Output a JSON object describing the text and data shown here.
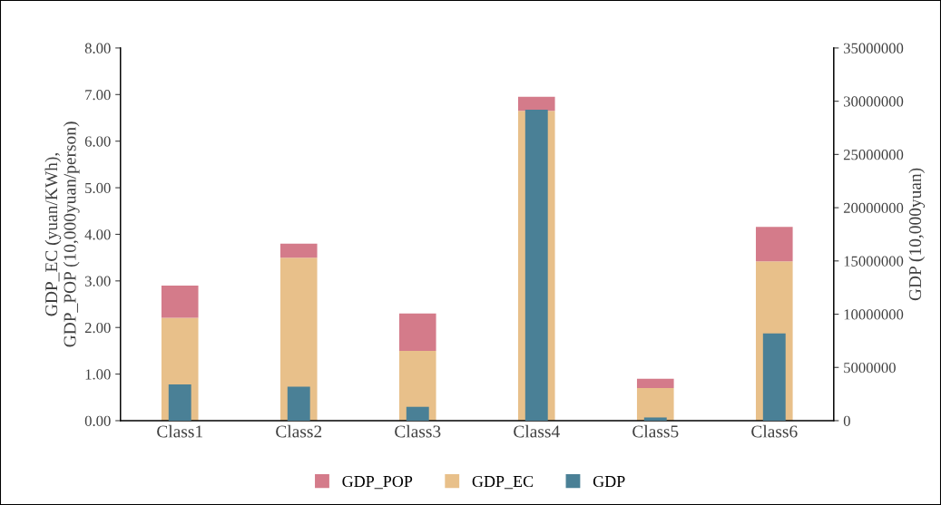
{
  "chart_data": {
    "type": "bar",
    "stacked": true,
    "categories": [
      "Class1",
      "Class2",
      "Class3",
      "Class4",
      "Class5",
      "Class6"
    ],
    "ylabel": "GDP_EC (yuan/KWh),\nGDP_POP (10,000yuan/person)",
    "y2label": "GDP (10,000yuan)",
    "series": [
      {
        "name": "GDP_EC",
        "color": "#e8c08a",
        "values": [
          2.21,
          3.5,
          1.5,
          6.65,
          0.7,
          3.42
        ]
      },
      {
        "name": "GDP_POP",
        "color": "#d47b8a",
        "values": [
          0.69,
          0.3,
          0.8,
          0.3,
          0.2,
          0.74
        ]
      },
      {
        "name": "GDP",
        "color": "#4a8096",
        "axis": "y2",
        "values": [
          3400000,
          3200000,
          1300000,
          29200000,
          300000,
          8200000
        ]
      }
    ],
    "ylim": [
      0,
      8
    ],
    "yticks": [
      {
        "value": 0,
        "label": "0.00"
      },
      {
        "value": 1,
        "label": "1.00"
      },
      {
        "value": 2,
        "label": "2.00"
      },
      {
        "value": 3,
        "label": "3.00"
      },
      {
        "value": 4,
        "label": "4.00"
      },
      {
        "value": 5,
        "label": "5.00"
      },
      {
        "value": 6,
        "label": "6.00"
      },
      {
        "value": 7,
        "label": "7.00"
      },
      {
        "value": 8,
        "label": "8.00"
      }
    ],
    "y2lim": [
      0,
      35000000
    ],
    "y2ticks": [
      0,
      5000000,
      10000000,
      15000000,
      20000000,
      25000000,
      30000000,
      35000000
    ],
    "grid": false,
    "legend": "bottom"
  }
}
